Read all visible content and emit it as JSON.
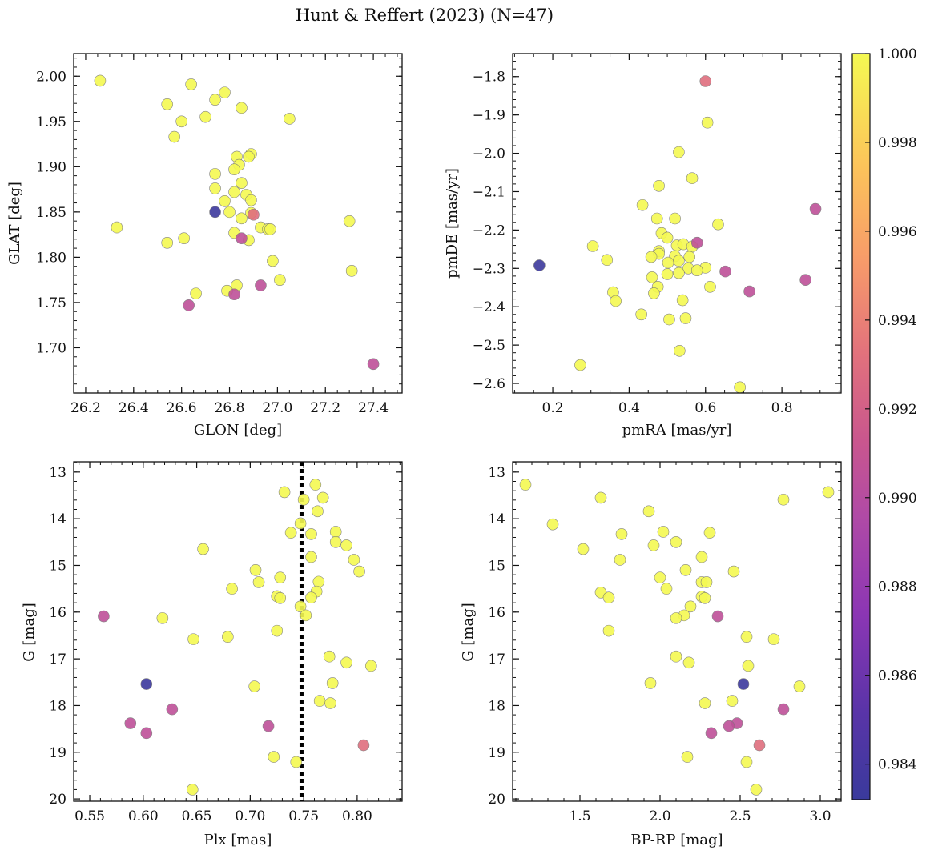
{
  "figure": {
    "title": "Hunt & Reffert (2023) (N=47)"
  },
  "colorbar": {
    "ticks": [
      "0.984",
      "0.986",
      "0.988",
      "0.990",
      "0.992",
      "0.994",
      "0.996",
      "0.998",
      "1.000"
    ],
    "range": [
      0.9832,
      1.0
    ],
    "colormap": "plasma"
  },
  "chart_data": [
    {
      "id": "panel-glon-glat",
      "type": "scatter",
      "xlabel": "GLON [deg]",
      "ylabel": "GLAT [deg]",
      "xlim": [
        26.15,
        27.52
      ],
      "ylim": [
        1.65,
        2.025
      ],
      "inverted_y": false,
      "xticks": [
        "26.2",
        "26.4",
        "26.6",
        "26.8",
        "27.0",
        "27.2",
        "27.4"
      ],
      "yticks": [
        "1.70",
        "1.75",
        "1.80",
        "1.85",
        "1.90",
        "1.95",
        "2.00"
      ],
      "points": [
        {
          "x": 26.26,
          "y": 1.995,
          "c": 1.0
        },
        {
          "x": 26.64,
          "y": 1.991,
          "c": 1.0
        },
        {
          "x": 26.78,
          "y": 1.982,
          "c": 1.0
        },
        {
          "x": 26.74,
          "y": 1.974,
          "c": 1.0
        },
        {
          "x": 26.54,
          "y": 1.969,
          "c": 1.0
        },
        {
          "x": 26.85,
          "y": 1.965,
          "c": 1.0
        },
        {
          "x": 26.7,
          "y": 1.955,
          "c": 1.0
        },
        {
          "x": 27.05,
          "y": 1.953,
          "c": 1.0
        },
        {
          "x": 26.6,
          "y": 1.95,
          "c": 1.0
        },
        {
          "x": 26.57,
          "y": 1.933,
          "c": 1.0
        },
        {
          "x": 26.89,
          "y": 1.914,
          "c": 1.0
        },
        {
          "x": 26.83,
          "y": 1.911,
          "c": 1.0
        },
        {
          "x": 26.88,
          "y": 1.911,
          "c": 1.0
        },
        {
          "x": 26.84,
          "y": 1.902,
          "c": 1.0
        },
        {
          "x": 26.82,
          "y": 1.897,
          "c": 1.0
        },
        {
          "x": 26.74,
          "y": 1.892,
          "c": 1.0
        },
        {
          "x": 26.85,
          "y": 1.882,
          "c": 1.0
        },
        {
          "x": 26.74,
          "y": 1.876,
          "c": 1.0
        },
        {
          "x": 26.82,
          "y": 1.872,
          "c": 1.0
        },
        {
          "x": 26.87,
          "y": 1.869,
          "c": 1.0
        },
        {
          "x": 26.89,
          "y": 1.863,
          "c": 1.0
        },
        {
          "x": 26.78,
          "y": 1.862,
          "c": 1.0
        },
        {
          "x": 26.74,
          "y": 1.85,
          "c": 0.9834
        },
        {
          "x": 26.8,
          "y": 1.85,
          "c": 1.0
        },
        {
          "x": 26.89,
          "y": 1.849,
          "c": 1.0
        },
        {
          "x": 26.9,
          "y": 1.847,
          "c": 0.993
        },
        {
          "x": 26.85,
          "y": 1.843,
          "c": 1.0
        },
        {
          "x": 27.3,
          "y": 1.84,
          "c": 1.0
        },
        {
          "x": 26.33,
          "y": 1.833,
          "c": 1.0
        },
        {
          "x": 26.93,
          "y": 1.833,
          "c": 1.0
        },
        {
          "x": 26.96,
          "y": 1.831,
          "c": 1.0
        },
        {
          "x": 26.97,
          "y": 1.831,
          "c": 1.0
        },
        {
          "x": 26.82,
          "y": 1.827,
          "c": 1.0
        },
        {
          "x": 26.61,
          "y": 1.821,
          "c": 1.0
        },
        {
          "x": 26.85,
          "y": 1.821,
          "c": 0.9905
        },
        {
          "x": 26.88,
          "y": 1.819,
          "c": 1.0
        },
        {
          "x": 26.54,
          "y": 1.816,
          "c": 1.0
        },
        {
          "x": 26.98,
          "y": 1.796,
          "c": 1.0
        },
        {
          "x": 27.31,
          "y": 1.785,
          "c": 1.0
        },
        {
          "x": 27.01,
          "y": 1.775,
          "c": 1.0
        },
        {
          "x": 26.93,
          "y": 1.769,
          "c": 0.9905
        },
        {
          "x": 26.83,
          "y": 1.769,
          "c": 1.0
        },
        {
          "x": 26.79,
          "y": 1.763,
          "c": 1.0
        },
        {
          "x": 26.66,
          "y": 1.76,
          "c": 1.0
        },
        {
          "x": 26.82,
          "y": 1.759,
          "c": 0.9905
        },
        {
          "x": 26.63,
          "y": 1.747,
          "c": 0.9905
        },
        {
          "x": 27.4,
          "y": 1.682,
          "c": 0.9905
        }
      ]
    },
    {
      "id": "panel-pmra-pmde",
      "type": "scatter",
      "xlabel": "pmRA [mas/yr]",
      "ylabel": "pmDE [mas/yr]",
      "xlim": [
        0.095,
        0.955
      ],
      "ylim": [
        -2.625,
        -1.74
      ],
      "inverted_y": false,
      "xticks": [
        "0.2",
        "0.4",
        "0.6",
        "0.8"
      ],
      "yticks": [
        "−1.8",
        "−1.9",
        "−2.0",
        "−2.1",
        "−2.2",
        "−2.3",
        "−2.4",
        "−2.5",
        "−2.6"
      ],
      "points": [
        {
          "x": 0.6,
          "y": -1.812,
          "c": 0.993
        },
        {
          "x": 0.605,
          "y": -1.92,
          "c": 1.0
        },
        {
          "x": 0.53,
          "y": -1.997,
          "c": 1.0
        },
        {
          "x": 0.565,
          "y": -2.065,
          "c": 1.0
        },
        {
          "x": 0.478,
          "y": -2.085,
          "c": 1.0
        },
        {
          "x": 0.435,
          "y": -2.135,
          "c": 1.0
        },
        {
          "x": 0.888,
          "y": -2.145,
          "c": 0.9905
        },
        {
          "x": 0.473,
          "y": -2.17,
          "c": 1.0
        },
        {
          "x": 0.52,
          "y": -2.17,
          "c": 1.0
        },
        {
          "x": 0.633,
          "y": -2.185,
          "c": 1.0
        },
        {
          "x": 0.485,
          "y": -2.208,
          "c": 1.0
        },
        {
          "x": 0.5,
          "y": -2.22,
          "c": 1.0
        },
        {
          "x": 0.578,
          "y": -2.233,
          "c": 0.9905
        },
        {
          "x": 0.525,
          "y": -2.24,
          "c": 1.0
        },
        {
          "x": 0.542,
          "y": -2.237,
          "c": 1.0
        },
        {
          "x": 0.305,
          "y": -2.242,
          "c": 1.0
        },
        {
          "x": 0.565,
          "y": -2.243,
          "c": 1.0
        },
        {
          "x": 0.478,
          "y": -2.255,
          "c": 1.0
        },
        {
          "x": 0.478,
          "y": -2.262,
          "c": 1.0
        },
        {
          "x": 0.458,
          "y": -2.27,
          "c": 1.0
        },
        {
          "x": 0.52,
          "y": -2.268,
          "c": 1.0
        },
        {
          "x": 0.558,
          "y": -2.27,
          "c": 1.0
        },
        {
          "x": 0.342,
          "y": -2.278,
          "c": 1.0
        },
        {
          "x": 0.53,
          "y": -2.28,
          "c": 1.0
        },
        {
          "x": 0.502,
          "y": -2.285,
          "c": 1.0
        },
        {
          "x": 0.165,
          "y": -2.292,
          "c": 0.9834
        },
        {
          "x": 0.6,
          "y": -2.298,
          "c": 1.0
        },
        {
          "x": 0.555,
          "y": -2.3,
          "c": 1.0
        },
        {
          "x": 0.578,
          "y": -2.305,
          "c": 1.0
        },
        {
          "x": 0.652,
          "y": -2.308,
          "c": 0.9905
        },
        {
          "x": 0.53,
          "y": -2.312,
          "c": 1.0
        },
        {
          "x": 0.5,
          "y": -2.315,
          "c": 1.0
        },
        {
          "x": 0.46,
          "y": -2.323,
          "c": 1.0
        },
        {
          "x": 0.862,
          "y": -2.33,
          "c": 0.9905
        },
        {
          "x": 0.475,
          "y": -2.348,
          "c": 1.0
        },
        {
          "x": 0.612,
          "y": -2.348,
          "c": 1.0
        },
        {
          "x": 0.715,
          "y": -2.36,
          "c": 0.9905
        },
        {
          "x": 0.358,
          "y": -2.362,
          "c": 1.0
        },
        {
          "x": 0.465,
          "y": -2.365,
          "c": 1.0
        },
        {
          "x": 0.365,
          "y": -2.385,
          "c": 1.0
        },
        {
          "x": 0.54,
          "y": -2.383,
          "c": 1.0
        },
        {
          "x": 0.432,
          "y": -2.42,
          "c": 1.0
        },
        {
          "x": 0.548,
          "y": -2.43,
          "c": 1.0
        },
        {
          "x": 0.505,
          "y": -2.433,
          "c": 1.0
        },
        {
          "x": 0.532,
          "y": -2.515,
          "c": 1.0
        },
        {
          "x": 0.272,
          "y": -2.552,
          "c": 1.0
        },
        {
          "x": 0.69,
          "y": -2.61,
          "c": 1.0
        }
      ]
    },
    {
      "id": "panel-plx-g",
      "type": "scatter",
      "xlabel": "Plx [mas]",
      "ylabel": "G [mag]",
      "xlim": [
        0.535,
        0.842
      ],
      "ylim": [
        12.78,
        20.05
      ],
      "inverted_y": true,
      "xticks": [
        "0.55",
        "0.60",
        "0.65",
        "0.70",
        "0.75",
        "0.80"
      ],
      "yticks": [
        "13",
        "14",
        "15",
        "16",
        "17",
        "18",
        "19",
        "20"
      ],
      "reference_line": {
        "x": 0.748,
        "style": "dotted"
      },
      "points": [
        {
          "x": 0.761,
          "y": 13.27,
          "c": 1.0
        },
        {
          "x": 0.732,
          "y": 13.43,
          "c": 1.0
        },
        {
          "x": 0.768,
          "y": 13.55,
          "c": 1.0
        },
        {
          "x": 0.75,
          "y": 13.59,
          "c": 1.0
        },
        {
          "x": 0.763,
          "y": 13.84,
          "c": 1.0
        },
        {
          "x": 0.747,
          "y": 14.1,
          "c": 1.0
        },
        {
          "x": 0.738,
          "y": 14.3,
          "c": 1.0
        },
        {
          "x": 0.78,
          "y": 14.28,
          "c": 1.0
        },
        {
          "x": 0.757,
          "y": 14.33,
          "c": 1.0
        },
        {
          "x": 0.78,
          "y": 14.5,
          "c": 1.0
        },
        {
          "x": 0.79,
          "y": 14.57,
          "c": 1.0
        },
        {
          "x": 0.656,
          "y": 14.65,
          "c": 1.0
        },
        {
          "x": 0.757,
          "y": 14.82,
          "c": 1.0
        },
        {
          "x": 0.797,
          "y": 14.88,
          "c": 1.0
        },
        {
          "x": 0.705,
          "y": 15.1,
          "c": 1.0
        },
        {
          "x": 0.802,
          "y": 15.13,
          "c": 1.0
        },
        {
          "x": 0.728,
          "y": 15.26,
          "c": 1.0
        },
        {
          "x": 0.708,
          "y": 15.36,
          "c": 1.0
        },
        {
          "x": 0.764,
          "y": 15.35,
          "c": 1.0
        },
        {
          "x": 0.683,
          "y": 15.5,
          "c": 1.0
        },
        {
          "x": 0.762,
          "y": 15.56,
          "c": 1.0
        },
        {
          "x": 0.725,
          "y": 15.66,
          "c": 1.0
        },
        {
          "x": 0.728,
          "y": 15.7,
          "c": 1.0
        },
        {
          "x": 0.757,
          "y": 15.69,
          "c": 1.0
        },
        {
          "x": 0.747,
          "y": 15.88,
          "c": 1.0
        },
        {
          "x": 0.752,
          "y": 16.07,
          "c": 1.0
        },
        {
          "x": 0.563,
          "y": 16.09,
          "c": 0.9905
        },
        {
          "x": 0.618,
          "y": 16.13,
          "c": 1.0
        },
        {
          "x": 0.725,
          "y": 16.4,
          "c": 1.0
        },
        {
          "x": 0.679,
          "y": 16.53,
          "c": 1.0
        },
        {
          "x": 0.647,
          "y": 16.58,
          "c": 1.0
        },
        {
          "x": 0.774,
          "y": 16.95,
          "c": 1.0
        },
        {
          "x": 0.79,
          "y": 17.08,
          "c": 1.0
        },
        {
          "x": 0.813,
          "y": 17.15,
          "c": 1.0
        },
        {
          "x": 0.777,
          "y": 17.52,
          "c": 1.0
        },
        {
          "x": 0.603,
          "y": 17.54,
          "c": 0.9834
        },
        {
          "x": 0.704,
          "y": 17.59,
          "c": 1.0
        },
        {
          "x": 0.765,
          "y": 17.9,
          "c": 1.0
        },
        {
          "x": 0.775,
          "y": 17.95,
          "c": 1.0
        },
        {
          "x": 0.627,
          "y": 18.08,
          "c": 0.9905
        },
        {
          "x": 0.588,
          "y": 18.38,
          "c": 0.9905
        },
        {
          "x": 0.717,
          "y": 18.44,
          "c": 0.9905
        },
        {
          "x": 0.603,
          "y": 18.59,
          "c": 0.9905
        },
        {
          "x": 0.806,
          "y": 18.85,
          "c": 0.993
        },
        {
          "x": 0.722,
          "y": 19.1,
          "c": 1.0
        },
        {
          "x": 0.743,
          "y": 19.21,
          "c": 1.0
        },
        {
          "x": 0.646,
          "y": 19.8,
          "c": 1.0
        }
      ]
    },
    {
      "id": "panel-bprp-g",
      "type": "scatter",
      "xlabel": "BP-RP [mag]",
      "ylabel": "G [mag]",
      "xlim": [
        1.08,
        3.13
      ],
      "ylim": [
        12.78,
        20.05
      ],
      "inverted_y": true,
      "xticks": [
        "1.5",
        "2.0",
        "2.5",
        "3.0"
      ],
      "yticks": [
        "13",
        "14",
        "15",
        "16",
        "17",
        "18",
        "19",
        "20"
      ],
      "points": [
        {
          "x": 1.16,
          "y": 13.27,
          "c": 1.0
        },
        {
          "x": 3.05,
          "y": 13.43,
          "c": 1.0
        },
        {
          "x": 1.63,
          "y": 13.55,
          "c": 1.0
        },
        {
          "x": 2.77,
          "y": 13.59,
          "c": 1.0
        },
        {
          "x": 1.93,
          "y": 13.84,
          "c": 1.0
        },
        {
          "x": 1.33,
          "y": 14.12,
          "c": 1.0
        },
        {
          "x": 2.02,
          "y": 14.28,
          "c": 1.0
        },
        {
          "x": 2.31,
          "y": 14.3,
          "c": 1.0
        },
        {
          "x": 1.76,
          "y": 14.33,
          "c": 1.0
        },
        {
          "x": 2.1,
          "y": 14.5,
          "c": 1.0
        },
        {
          "x": 1.96,
          "y": 14.57,
          "c": 1.0
        },
        {
          "x": 1.52,
          "y": 14.65,
          "c": 1.0
        },
        {
          "x": 2.26,
          "y": 14.82,
          "c": 1.0
        },
        {
          "x": 1.75,
          "y": 14.88,
          "c": 1.0
        },
        {
          "x": 2.16,
          "y": 15.1,
          "c": 1.0
        },
        {
          "x": 2.46,
          "y": 15.13,
          "c": 1.0
        },
        {
          "x": 2.0,
          "y": 15.26,
          "c": 1.0
        },
        {
          "x": 2.26,
          "y": 15.36,
          "c": 1.0
        },
        {
          "x": 2.29,
          "y": 15.36,
          "c": 1.0
        },
        {
          "x": 2.04,
          "y": 15.5,
          "c": 1.0
        },
        {
          "x": 1.63,
          "y": 15.58,
          "c": 1.0
        },
        {
          "x": 2.26,
          "y": 15.67,
          "c": 1.0
        },
        {
          "x": 2.28,
          "y": 15.7,
          "c": 1.0
        },
        {
          "x": 1.68,
          "y": 15.69,
          "c": 1.0
        },
        {
          "x": 2.19,
          "y": 15.88,
          "c": 1.0
        },
        {
          "x": 2.15,
          "y": 16.07,
          "c": 1.0
        },
        {
          "x": 2.36,
          "y": 16.09,
          "c": 0.9905
        },
        {
          "x": 2.1,
          "y": 16.13,
          "c": 1.0
        },
        {
          "x": 1.68,
          "y": 16.4,
          "c": 1.0
        },
        {
          "x": 2.54,
          "y": 16.53,
          "c": 1.0
        },
        {
          "x": 2.71,
          "y": 16.58,
          "c": 1.0
        },
        {
          "x": 2.1,
          "y": 16.95,
          "c": 1.0
        },
        {
          "x": 2.18,
          "y": 17.08,
          "c": 1.0
        },
        {
          "x": 2.55,
          "y": 17.15,
          "c": 1.0
        },
        {
          "x": 1.94,
          "y": 17.52,
          "c": 1.0
        },
        {
          "x": 2.52,
          "y": 17.54,
          "c": 0.9834
        },
        {
          "x": 2.87,
          "y": 17.59,
          "c": 1.0
        },
        {
          "x": 2.45,
          "y": 17.9,
          "c": 1.0
        },
        {
          "x": 2.28,
          "y": 17.95,
          "c": 1.0
        },
        {
          "x": 2.77,
          "y": 18.08,
          "c": 0.9905
        },
        {
          "x": 2.48,
          "y": 18.38,
          "c": 0.9905
        },
        {
          "x": 2.43,
          "y": 18.44,
          "c": 0.9905
        },
        {
          "x": 2.32,
          "y": 18.59,
          "c": 0.9905
        },
        {
          "x": 2.62,
          "y": 18.85,
          "c": 0.993
        },
        {
          "x": 2.17,
          "y": 19.1,
          "c": 1.0
        },
        {
          "x": 2.54,
          "y": 19.21,
          "c": 1.0
        },
        {
          "x": 2.6,
          "y": 19.8,
          "c": 1.0
        }
      ]
    }
  ]
}
